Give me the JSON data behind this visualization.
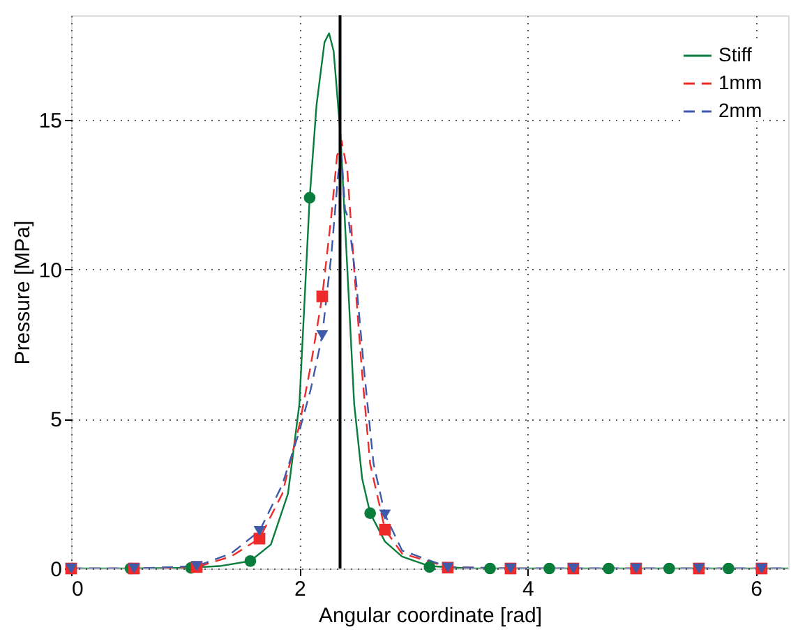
{
  "chart_data": {
    "type": "line",
    "xlabel": "Angular coordinate [rad]",
    "ylabel": "Pressure [MPa]",
    "xlim": [
      0,
      6.283
    ],
    "ylim": [
      0,
      18.5
    ],
    "xticks": [
      0,
      2,
      4,
      6
    ],
    "yticks": [
      0,
      5,
      10,
      15
    ],
    "grid": true,
    "legend": "top right",
    "ref_lines": [
      {
        "axis": "x",
        "value": 2.356,
        "color": "#000000"
      }
    ],
    "series": [
      {
        "name": "Stiff",
        "color": "#0a7d3c",
        "line_style": "solid",
        "marker": "none",
        "x": [
          0,
          0.5,
          1.0,
          1.3,
          1.57,
          1.75,
          1.9,
          2.0,
          2.09,
          2.15,
          2.22,
          2.26,
          2.3,
          2.36,
          2.42,
          2.48,
          2.55,
          2.62,
          2.75,
          2.9,
          3.14,
          3.5,
          6.283
        ],
        "values": [
          0,
          0,
          0.02,
          0.08,
          0.25,
          0.8,
          2.5,
          5.5,
          12.4,
          15.5,
          17.6,
          17.9,
          17.3,
          14.5,
          10,
          5.5,
          3,
          1.85,
          0.9,
          0.4,
          0.08,
          0,
          0
        ]
      },
      {
        "name": "1mm",
        "color": "#ee2a2a",
        "line_style": "dashed",
        "marker": "none",
        "x": [
          0,
          0.55,
          1.1,
          1.4,
          1.65,
          1.85,
          2.0,
          2.1,
          2.2,
          2.28,
          2.33,
          2.37,
          2.42,
          2.48,
          2.55,
          2.62,
          2.75,
          2.9,
          3.3,
          3.85,
          6.283
        ],
        "values": [
          0,
          0,
          0.05,
          0.4,
          1.0,
          2.5,
          4.8,
          6.8,
          9.1,
          11.8,
          13.8,
          14.3,
          13.3,
          10,
          6.5,
          3.5,
          1.3,
          0.5,
          0.05,
          0,
          0
        ]
      },
      {
        "name": "2mm",
        "color": "#3f5aa8",
        "line_style": "dashed",
        "marker": "none",
        "x": [
          0,
          0.55,
          1.1,
          1.4,
          1.65,
          1.85,
          2.0,
          2.1,
          2.2,
          2.28,
          2.34,
          2.37,
          2.4,
          2.43,
          2.5,
          2.57,
          2.65,
          2.75,
          2.9,
          3.3,
          3.85,
          6.283
        ],
        "values": [
          0,
          0,
          0.08,
          0.5,
          1.25,
          2.8,
          4.6,
          6,
          7.8,
          10.5,
          13.2,
          13.8,
          12,
          11.7,
          9.5,
          6.5,
          3.5,
          1.8,
          0.6,
          0.05,
          0,
          0
        ]
      },
      {
        "type": "scatter",
        "color": "#0a7d3c",
        "marker": "circle",
        "x": [
          0.52,
          1.05,
          1.57,
          2.09,
          2.62,
          3.14,
          3.67,
          4.19,
          4.71,
          5.24,
          5.76
        ],
        "values": [
          0,
          0.02,
          0.25,
          12.4,
          1.85,
          0.05,
          0,
          0,
          0,
          0,
          0
        ]
      },
      {
        "type": "scatter",
        "color": "#ee2a2a",
        "marker": "square",
        "x": [
          0,
          0.55,
          1.1,
          1.65,
          2.2,
          2.75,
          3.3,
          3.85,
          4.4,
          4.95,
          5.5,
          6.05
        ],
        "values": [
          0,
          0,
          0.05,
          1.0,
          9.1,
          1.3,
          0.03,
          0,
          0,
          0,
          0,
          0
        ]
      },
      {
        "type": "scatter",
        "color": "#3f5aa8",
        "marker": "triangle",
        "x": [
          0,
          0.55,
          1.1,
          1.65,
          2.2,
          2.75,
          3.3,
          3.85,
          4.4,
          4.95,
          5.5,
          6.05
        ],
        "values": [
          0,
          0,
          0.08,
          1.25,
          7.8,
          1.8,
          0.03,
          0,
          0,
          0,
          0,
          0
        ]
      }
    ]
  }
}
